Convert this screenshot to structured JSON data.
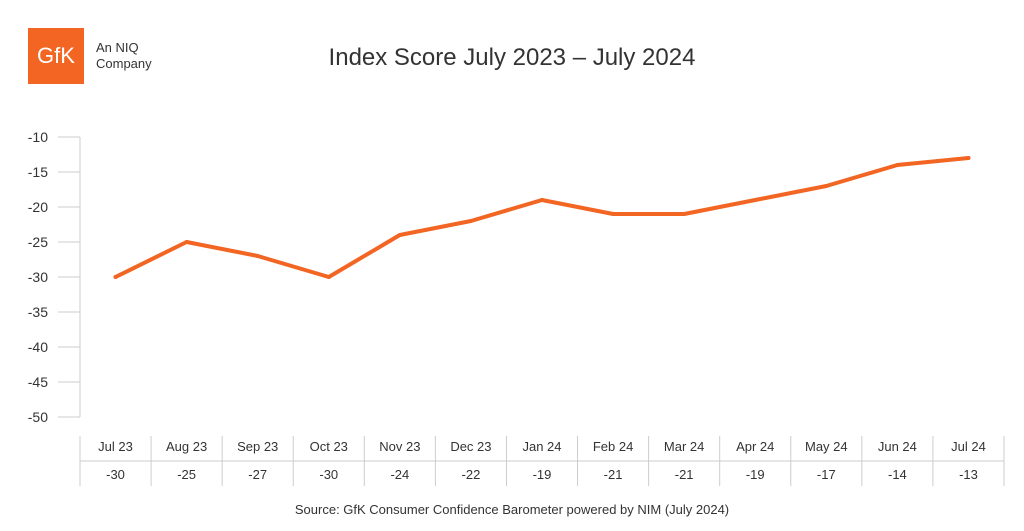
{
  "logo": {
    "text": "GfK",
    "tag_line1": "An NIQ",
    "tag_line2": "Company"
  },
  "chart_data": {
    "type": "line",
    "title": "Index Score July 2023 – July 2024",
    "categories": [
      "Jul 23",
      "Aug 23",
      "Sep 23",
      "Oct 23",
      "Nov 23",
      "Dec 23",
      "Jan 24",
      "Feb 24",
      "Mar 24",
      "Apr 24",
      "May 24",
      "Jun 24",
      "Jul 24"
    ],
    "values": [
      -30,
      -25,
      -27,
      -30,
      -24,
      -22,
      -19,
      -21,
      -21,
      -19,
      -17,
      -14,
      -13
    ],
    "value_labels": [
      "-30",
      "-25",
      "-27",
      "-30",
      "-24",
      "-22",
      "-19",
      "-21",
      "-21",
      "-19",
      "-17",
      "-14",
      "-13"
    ],
    "yticks": [
      "-10",
      "-15",
      "-20",
      "-25",
      "-30",
      "-35",
      "-40",
      "-45",
      "-50"
    ],
    "ylim": [
      -50,
      -10
    ],
    "grid": false,
    "colors": {
      "line": "#f26522",
      "axis": "#cccccc",
      "text": "#333333"
    }
  },
  "source": "Source: GfK Consumer Confidence Barometer powered by NIM (July 2024)"
}
